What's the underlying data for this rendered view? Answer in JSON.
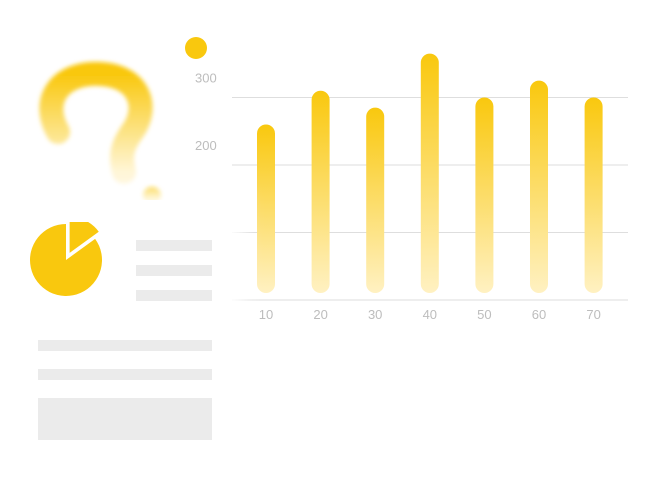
{
  "colors": {
    "bar_top": "#f9c80e",
    "bar_bottom": "#fff1c2",
    "gridline": "#dedede",
    "tick_text": "#bdbdbd",
    "doc_line": "#ebebeb",
    "accent": "#f9c80e"
  },
  "icons": {
    "question": "question-mark-icon",
    "dot": "dot-icon",
    "pie": "pie-chart-icon"
  },
  "chart_data": {
    "type": "bar",
    "title": "",
    "xlabel": "",
    "ylabel": "",
    "categories": [
      "10",
      "20",
      "30",
      "40",
      "50",
      "60",
      "70"
    ],
    "values": [
      260,
      310,
      285,
      365,
      300,
      325,
      300
    ],
    "y_ticks": [
      "300",
      "200"
    ],
    "ylim": [
      0,
      400
    ],
    "grid": true,
    "legend": "none"
  },
  "doc_card": {
    "pie_value": 0.85
  }
}
